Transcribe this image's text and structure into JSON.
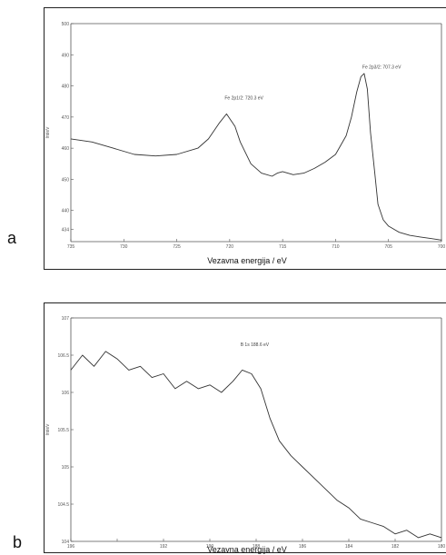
{
  "panels": [
    {
      "letter": "a"
    },
    {
      "letter": "b"
    }
  ],
  "chart_data": [
    {
      "type": "line",
      "panel": "a",
      "xlabel": "Vezavna energija / eV",
      "ylabel": "Int/eV",
      "xlim": [
        735,
        700
      ],
      "ylim": [
        430,
        500
      ],
      "xticks": [
        735,
        730,
        725,
        720,
        715,
        710,
        705,
        700
      ],
      "xtick_labels": [
        "735",
        "730",
        "725",
        "720",
        "715",
        "710",
        "705",
        "700"
      ],
      "yticks": [
        434,
        440,
        450,
        460,
        470,
        480,
        490,
        500
      ],
      "ytick_labels": [
        "434",
        "440",
        "450",
        "460",
        "470",
        "480",
        "490",
        "500"
      ],
      "grid": false,
      "annotations": [
        {
          "text": "Fe 2p1/2: 720.3 eV",
          "x": 720.3,
          "y": 475
        },
        {
          "text": "Fe 2p3/2: 707.3 eV",
          "x": 707.3,
          "y": 485
        }
      ],
      "series": [
        {
          "x": [
            735,
            733,
            731,
            729,
            727,
            725,
            723,
            722,
            721,
            720.3,
            719.5,
            719,
            718,
            717,
            716,
            715.5,
            715,
            714,
            713,
            712,
            711,
            710,
            709,
            708.5,
            708,
            707.6,
            707.3,
            707,
            706.7,
            706.3,
            706,
            705.5,
            705,
            704,
            703,
            702,
            701,
            700
          ],
          "y": [
            463,
            462,
            460,
            458,
            457.5,
            458,
            460,
            463,
            468,
            471,
            467,
            462,
            455,
            452,
            451,
            452,
            452.5,
            451.5,
            452,
            453.5,
            455.5,
            458,
            464,
            470,
            478,
            483,
            484,
            479,
            465,
            452,
            442,
            437,
            435,
            433,
            432,
            431.5,
            431,
            430.5
          ]
        }
      ]
    },
    {
      "type": "line",
      "panel": "b",
      "xlabel": "Vezavna energija / eV",
      "ylabel": "Int/eV",
      "xlim": [
        196,
        180
      ],
      "ylim": [
        104,
        107
      ],
      "xticks": [
        196,
        194,
        192,
        190,
        188,
        186,
        184,
        182,
        180
      ],
      "xtick_labels": [
        "196",
        "",
        "192",
        "190",
        "188",
        "186",
        "184",
        "182",
        "180"
      ],
      "yticks": [
        104,
        104.5,
        105,
        105.5,
        106,
        106.5,
        107
      ],
      "ytick_labels": [
        "104",
        "104.5",
        "105",
        "105.5",
        "106",
        "106.5",
        "107"
      ],
      "grid": false,
      "annotations": [
        {
          "text": "B 1s 188.6 eV",
          "x": 188.6,
          "y": 106.6
        }
      ],
      "series": [
        {
          "x": [
            196,
            195.5,
            195,
            194.5,
            194,
            193.5,
            193,
            192.5,
            192,
            191.5,
            191,
            190.5,
            190,
            189.5,
            189,
            188.6,
            188.2,
            187.8,
            187.4,
            187,
            186.5,
            186,
            185.5,
            185,
            184.5,
            184,
            183.5,
            183,
            182.5,
            182,
            181.5,
            181,
            180.5,
            180
          ],
          "y": [
            106.3,
            106.5,
            106.35,
            106.55,
            106.45,
            106.3,
            106.35,
            106.2,
            106.25,
            106.05,
            106.15,
            106.05,
            106.1,
            106.0,
            106.15,
            106.3,
            106.25,
            106.05,
            105.65,
            105.35,
            105.15,
            105.0,
            104.85,
            104.7,
            104.55,
            104.45,
            104.3,
            104.25,
            104.2,
            104.1,
            104.15,
            104.05,
            104.1,
            104.05
          ]
        }
      ]
    }
  ]
}
